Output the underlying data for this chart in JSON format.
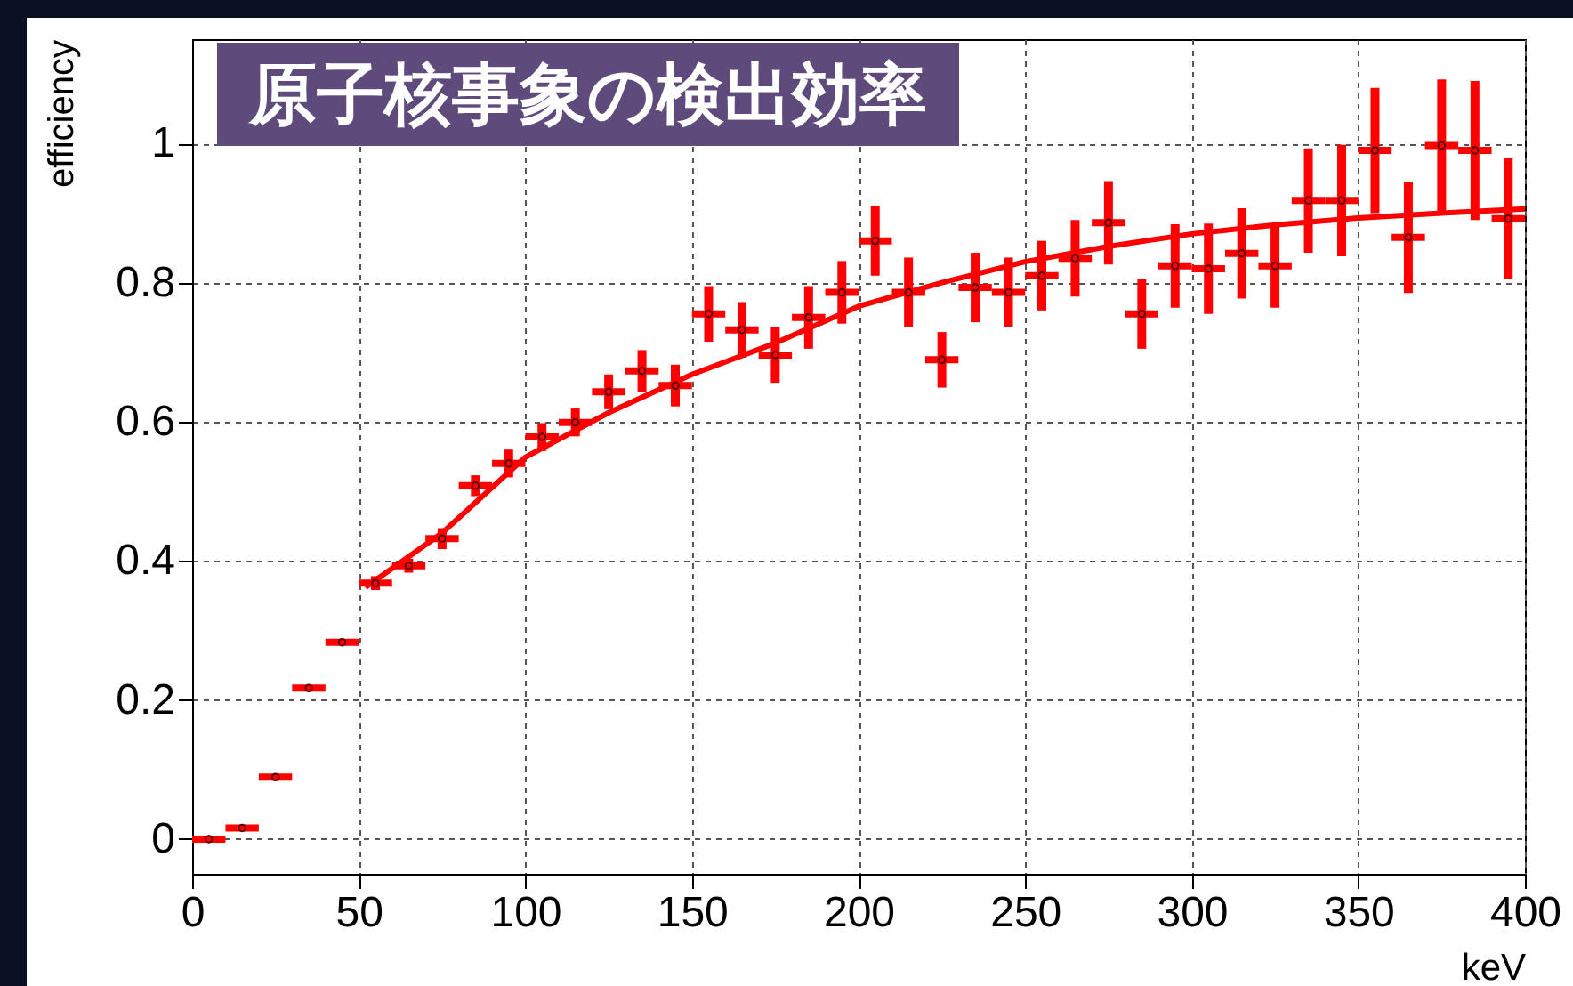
{
  "chart_data": {
    "type": "scatter",
    "title": "原子核事象の検出効率",
    "xlabel": "keV",
    "ylabel": "efficiency",
    "xlim": [
      0,
      400
    ],
    "ylim": [
      -0.05,
      1.15
    ],
    "xticks": [
      0,
      50,
      100,
      150,
      200,
      250,
      300,
      350,
      400
    ],
    "yticks": [
      0,
      0.2,
      0.4,
      0.6,
      0.8,
      1
    ],
    "grid": true,
    "series": [
      {
        "color": "#ff0000",
        "x": [
          5,
          15,
          25,
          35,
          45,
          55,
          65,
          75,
          85,
          95,
          105,
          115,
          125,
          135,
          145,
          155,
          165,
          175,
          185,
          195,
          205,
          215,
          225,
          235,
          245,
          255,
          265,
          275,
          285,
          295,
          305,
          315,
          325,
          335,
          345,
          355,
          365,
          375,
          385,
          395
        ],
        "values": [
          0.0,
          0.016,
          0.089,
          0.217,
          0.283,
          0.368,
          0.393,
          0.432,
          0.508,
          0.54,
          0.578,
          0.599,
          0.643,
          0.673,
          0.652,
          0.755,
          0.732,
          0.696,
          0.75,
          0.786,
          0.86,
          0.786,
          0.689,
          0.793,
          0.786,
          0.81,
          0.835,
          0.886,
          0.755,
          0.824,
          0.82,
          0.842,
          0.824,
          0.918,
          0.918,
          0.99,
          0.865,
          0.997,
          0.99,
          0.892
        ],
        "errors": [
          null,
          null,
          null,
          null,
          null,
          0.01,
          0.01,
          0.015,
          0.015,
          0.02,
          0.02,
          0.02,
          0.025,
          0.03,
          0.03,
          0.04,
          0.04,
          0.04,
          0.045,
          0.045,
          0.05,
          0.05,
          0.04,
          0.05,
          0.05,
          0.05,
          0.055,
          0.06,
          0.05,
          0.06,
          0.065,
          0.065,
          0.06,
          0.075,
          0.08,
          0.09,
          0.08,
          0.095,
          0.1,
          0.087
        ],
        "xerrors": [
          5,
          5,
          5,
          5,
          5,
          5,
          5,
          5,
          5,
          5,
          5,
          5,
          5,
          5,
          5,
          5,
          5,
          5,
          5,
          5,
          5,
          5,
          5,
          5,
          5,
          5,
          5,
          5,
          5,
          5,
          5,
          5,
          5,
          5,
          5,
          5,
          5,
          5,
          5,
          5
        ]
      },
      {
        "type": "line",
        "color": "#ff0000",
        "x": [
          52,
          75,
          100,
          125,
          150,
          175,
          200,
          225,
          250,
          275,
          300,
          325,
          350,
          375,
          400
        ],
        "values": [
          0.362,
          0.44,
          0.549,
          0.613,
          0.668,
          0.713,
          0.766,
          0.8,
          0.83,
          0.852,
          0.87,
          0.883,
          0.893,
          0.9,
          0.906
        ]
      }
    ]
  }
}
